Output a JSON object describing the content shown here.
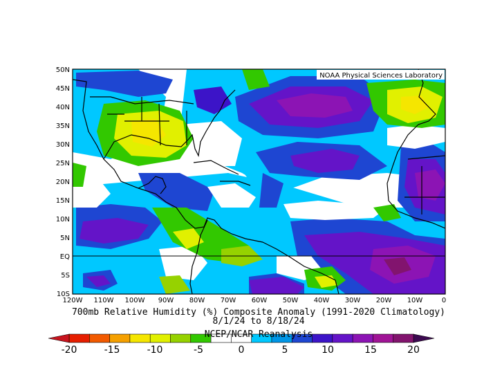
{
  "map": {
    "credit": "NOAA Physical Sciences Laboratory",
    "lat_labels": [
      "50N",
      "45N",
      "40N",
      "35N",
      "30N",
      "25N",
      "20N",
      "15N",
      "10N",
      "5N",
      "EQ",
      "5S",
      "10S"
    ],
    "lon_labels": [
      "120W",
      "110W",
      "100W",
      "90W",
      "80W",
      "70W",
      "60W",
      "50W",
      "40W",
      "30W",
      "20W",
      "10W",
      "0"
    ],
    "title": "700mb Relative Humidity (%) Composite Anomaly (1991-2020 Climatology)",
    "dates": "8/1/24  to 8/18/24",
    "source": "NCEP/NCAR Reanalysis"
  },
  "colorbar": {
    "labels": [
      "-20",
      "-15",
      "-10",
      "-5",
      "0",
      "5",
      "10",
      "15",
      "20"
    ],
    "colors": [
      "#e61e00",
      "#f25a00",
      "#f5a000",
      "#f5e600",
      "#e1f000",
      "#96d200",
      "#32c800",
      "#ffffff",
      "#ffffff",
      "#00c8ff",
      "#0096e6",
      "#1e46d2",
      "#3c14c8",
      "#6414c8",
      "#8c14b4",
      "#a01496",
      "#82146e"
    ]
  }
}
